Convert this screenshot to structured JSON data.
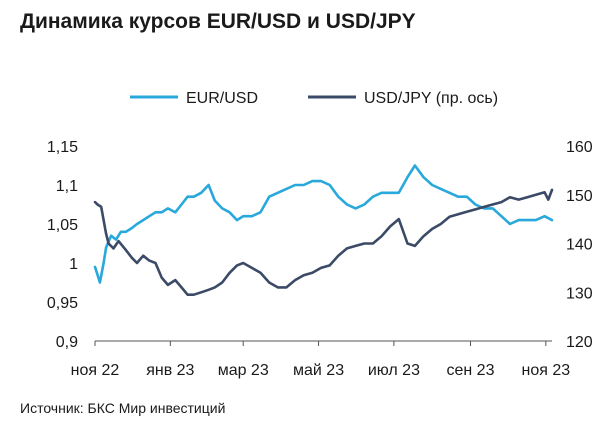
{
  "title": "Динамика курсов EUR/USD и USD/JPY",
  "source": "Источник: БКС Мир инвестиций",
  "colors": {
    "eurusd": "#29a8dc",
    "usdjpy": "#3b4a66",
    "axis": "#555555"
  },
  "chart_data": {
    "type": "line",
    "title": "Динамика курсов EUR/USD и USD/JPY",
    "x_ticks": [
      "ноя 22",
      "янв 23",
      "мар 23",
      "май 23",
      "июл 23",
      "сен 23",
      "ноя 23"
    ],
    "x_range": [
      "2022-11-01",
      "2023-11-06"
    ],
    "y_left": {
      "ylim": [
        0.9,
        1.15
      ],
      "ticks": [
        "1,15",
        "1,1",
        "1,05",
        "1",
        "0,95",
        "0,9"
      ]
    },
    "y_right": {
      "ylim": [
        120,
        160
      ],
      "ticks": [
        "160",
        "150",
        "140",
        "130",
        "120"
      ]
    },
    "grid": false,
    "legend": "top",
    "series": [
      {
        "name": "EUR/USD",
        "axis": "left",
        "x": [
          "2022-11-01",
          "2022-11-03",
          "2022-11-05",
          "2022-11-08",
          "2022-11-10",
          "2022-11-14",
          "2022-11-18",
          "2022-11-22",
          "2022-11-26",
          "2022-12-01",
          "2022-12-05",
          "2022-12-10",
          "2022-12-15",
          "2022-12-20",
          "2022-12-25",
          "2022-12-30",
          "2023-01-05",
          "2023-01-10",
          "2023-01-15",
          "2023-01-20",
          "2023-01-26",
          "2023-02-01",
          "2023-02-06",
          "2023-02-12",
          "2023-02-18",
          "2023-02-24",
          "2023-03-01",
          "2023-03-08",
          "2023-03-15",
          "2023-03-22",
          "2023-03-29",
          "2023-04-05",
          "2023-04-12",
          "2023-04-19",
          "2023-04-26",
          "2023-05-03",
          "2023-05-10",
          "2023-05-17",
          "2023-05-24",
          "2023-05-31",
          "2023-06-07",
          "2023-06-14",
          "2023-06-21",
          "2023-06-28",
          "2023-07-05",
          "2023-07-12",
          "2023-07-18",
          "2023-07-25",
          "2023-08-01",
          "2023-08-08",
          "2023-08-15",
          "2023-08-22",
          "2023-08-29",
          "2023-09-05",
          "2023-09-12",
          "2023-09-19",
          "2023-09-26",
          "2023-10-03",
          "2023-10-10",
          "2023-10-17",
          "2023-10-24",
          "2023-10-31",
          "2023-11-06"
        ],
        "y": [
          0.995,
          0.985,
          0.975,
          1.0,
          1.02,
          1.035,
          1.03,
          1.04,
          1.04,
          1.045,
          1.05,
          1.055,
          1.06,
          1.065,
          1.065,
          1.07,
          1.065,
          1.075,
          1.085,
          1.085,
          1.09,
          1.1,
          1.08,
          1.07,
          1.065,
          1.055,
          1.06,
          1.06,
          1.065,
          1.085,
          1.09,
          1.095,
          1.1,
          1.1,
          1.105,
          1.105,
          1.1,
          1.085,
          1.075,
          1.07,
          1.075,
          1.085,
          1.09,
          1.09,
          1.09,
          1.11,
          1.125,
          1.11,
          1.1,
          1.095,
          1.09,
          1.085,
          1.085,
          1.075,
          1.07,
          1.07,
          1.06,
          1.05,
          1.055,
          1.055,
          1.055,
          1.06,
          1.055
        ]
      },
      {
        "name": "USD/JPY (пр. ось)",
        "axis": "right",
        "x": [
          "2022-11-01",
          "2022-11-03",
          "2022-11-06",
          "2022-11-10",
          "2022-11-12",
          "2022-11-16",
          "2022-11-20",
          "2022-11-25",
          "2022-12-01",
          "2022-12-05",
          "2022-12-10",
          "2022-12-15",
          "2022-12-20",
          "2022-12-25",
          "2022-12-30",
          "2023-01-05",
          "2023-01-10",
          "2023-01-15",
          "2023-01-20",
          "2023-01-26",
          "2023-02-01",
          "2023-02-06",
          "2023-02-12",
          "2023-02-18",
          "2023-02-24",
          "2023-03-01",
          "2023-03-08",
          "2023-03-15",
          "2023-03-22",
          "2023-03-29",
          "2023-04-05",
          "2023-04-12",
          "2023-04-19",
          "2023-04-26",
          "2023-05-03",
          "2023-05-10",
          "2023-05-17",
          "2023-05-24",
          "2023-05-31",
          "2023-06-07",
          "2023-06-14",
          "2023-06-21",
          "2023-06-28",
          "2023-07-05",
          "2023-07-12",
          "2023-07-18",
          "2023-07-25",
          "2023-08-01",
          "2023-08-08",
          "2023-08-15",
          "2023-08-22",
          "2023-08-29",
          "2023-09-05",
          "2023-09-12",
          "2023-09-19",
          "2023-09-26",
          "2023-10-03",
          "2023-10-10",
          "2023-10-17",
          "2023-10-24",
          "2023-10-31",
          "2023-11-03",
          "2023-11-06"
        ],
        "y": [
          148.5,
          148,
          147.5,
          142,
          140,
          139,
          140.5,
          139,
          137,
          136,
          137.5,
          136.5,
          136,
          133,
          131.5,
          132.5,
          131,
          129.5,
          129.5,
          130,
          130.5,
          131,
          132,
          134,
          135.5,
          136,
          135,
          134,
          132,
          131,
          131,
          132.5,
          133.5,
          134,
          135,
          135.5,
          137.5,
          139,
          139.5,
          140,
          140,
          141.5,
          143.5,
          145,
          140,
          139.5,
          141.5,
          143,
          144,
          145.5,
          146,
          146.5,
          147,
          147.5,
          148,
          148.5,
          149.5,
          149,
          149.5,
          150,
          150.5,
          149,
          151
        ]
      }
    ]
  }
}
